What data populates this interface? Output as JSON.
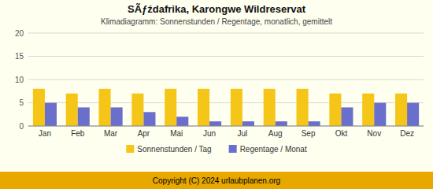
{
  "chart_data": {
    "type": "bar",
    "title": "SÃƒźdafrika, Karongwe Wildreservat",
    "subtitle": "Klimadiagramm: Sonnenstunden / Regentage, monatlich, gemittelt",
    "categories": [
      "Jan",
      "Feb",
      "Mar",
      "Apr",
      "Mai",
      "Jun",
      "Jul",
      "Aug",
      "Sep",
      "Okt",
      "Nov",
      "Dez"
    ],
    "series": [
      {
        "name": "Sonnenstunden / Tag",
        "color": "#F5C518",
        "values": [
          8,
          7,
          8,
          7,
          8,
          8,
          8,
          8,
          8,
          7,
          7,
          7
        ]
      },
      {
        "name": "Regentage / Monat",
        "color": "#6B6FCC",
        "values": [
          5,
          4,
          4,
          3,
          2,
          1,
          1,
          1,
          1,
          4,
          5,
          5
        ]
      }
    ],
    "ylim": [
      0,
      20
    ],
    "yticks": [
      0,
      5,
      10,
      15,
      20
    ],
    "grid": true,
    "legend": "bottom",
    "annotations": [
      "Copyright (C) 2024 urlaubplanen.org"
    ]
  }
}
